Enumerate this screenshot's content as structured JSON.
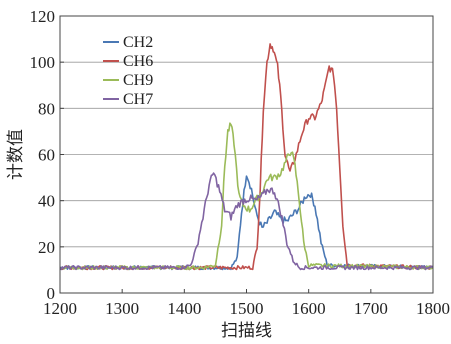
{
  "chart_data": {
    "type": "line",
    "title": "",
    "xlabel": "扫描线",
    "ylabel": "计数值",
    "xlim": [
      1200,
      1800
    ],
    "ylim": [
      0,
      120
    ],
    "xticks": [
      1200,
      1300,
      1400,
      1500,
      1600,
      1700,
      1800
    ],
    "yticks": [
      0,
      20,
      40,
      60,
      80,
      100,
      120
    ],
    "xtick_labels": [
      "1200",
      "1300",
      "1400",
      "1500",
      "1600",
      "1700",
      "1800"
    ],
    "ytick_labels": [
      "0",
      "20",
      "40",
      "60",
      "80",
      "100",
      "120"
    ],
    "grid": "horizontal",
    "legend_position": "top-left",
    "series": [
      {
        "name": "CH2",
        "color": "#4a78b4",
        "x": [
          1200,
          1450,
          1475,
          1485,
          1492,
          1500,
          1508,
          1515,
          1525,
          1535,
          1545,
          1555,
          1565,
          1575,
          1585,
          1595,
          1603,
          1610,
          1620,
          1630,
          1800
        ],
        "y": [
          11,
          11,
          11,
          15,
          35,
          52,
          45,
          35,
          28,
          31,
          35,
          32,
          31,
          34,
          37,
          42,
          43,
          38,
          22,
          12,
          11
        ]
      },
      {
        "name": "CH6",
        "color": "#c0504d",
        "x": [
          1200,
          1510,
          1517,
          1522,
          1527,
          1533,
          1538,
          1543,
          1550,
          1555,
          1562,
          1570,
          1580,
          1590,
          1600,
          1610,
          1620,
          1627,
          1633,
          1640,
          1645,
          1650,
          1655,
          1662,
          1800
        ],
        "y": [
          11,
          11,
          20,
          45,
          80,
          100,
          108,
          106,
          98,
          85,
          60,
          52,
          60,
          70,
          76,
          76,
          82,
          90,
          98,
          95,
          80,
          55,
          30,
          12,
          11
        ]
      },
      {
        "name": "CH9",
        "color": "#9bbb59",
        "x": [
          1200,
          1430,
          1450,
          1460,
          1465,
          1470,
          1475,
          1480,
          1488,
          1495,
          1505,
          1515,
          1525,
          1535,
          1545,
          1555,
          1565,
          1572,
          1578,
          1585,
          1592,
          1600,
          1800
        ],
        "y": [
          11,
          11,
          12,
          30,
          55,
          70,
          73,
          65,
          42,
          38,
          36,
          40,
          44,
          50,
          50,
          52,
          58,
          62,
          55,
          40,
          22,
          12,
          11
        ]
      },
      {
        "name": "CH7",
        "color": "#8064a2",
        "x": [
          1200,
          1395,
          1410,
          1420,
          1430,
          1440,
          1447,
          1455,
          1465,
          1475,
          1485,
          1495,
          1505,
          1515,
          1525,
          1535,
          1545,
          1555,
          1565,
          1575,
          1585,
          1800
        ],
        "y": [
          11,
          11,
          12,
          20,
          33,
          47,
          52,
          46,
          36,
          33,
          38,
          40,
          41,
          40,
          42,
          45,
          44,
          35,
          22,
          14,
          11,
          11
        ]
      }
    ]
  }
}
